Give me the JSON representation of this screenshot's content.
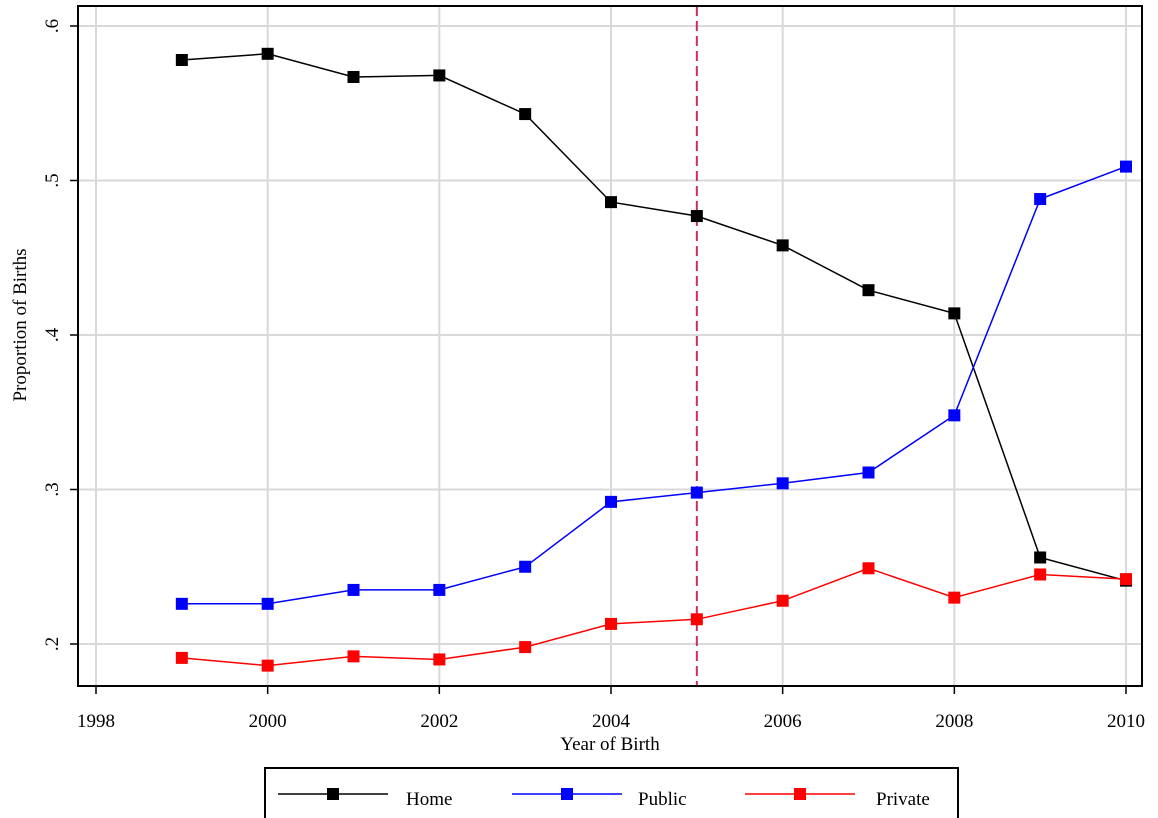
{
  "chart_data": {
    "type": "line",
    "title": "",
    "xlabel": "Year of Birth",
    "ylabel": "Proportion of Births",
    "xlim": [
      1998,
      2010
    ],
    "ylim": [
      0.2,
      0.6
    ],
    "x_ticks": [
      1998,
      2000,
      2002,
      2004,
      2006,
      2008,
      2010
    ],
    "x_tick_labels": [
      "1998",
      "2000",
      "2002",
      "2004",
      "2006",
      "2008",
      "2010"
    ],
    "y_ticks": [
      0.2,
      0.3,
      0.4,
      0.5,
      0.6
    ],
    "y_tick_labels": [
      ".2",
      ".3",
      ".4",
      ".5",
      ".6"
    ],
    "grid": true,
    "legend_position": "bottom",
    "reference_line": {
      "x": 2005,
      "color": "#c8325a",
      "style": "dashed"
    },
    "x": [
      1999,
      2000,
      2001,
      2002,
      2003,
      2004,
      2005,
      2006,
      2007,
      2008,
      2009,
      2010
    ],
    "series": [
      {
        "name": "Home",
        "color": "#000000",
        "values": [
          0.578,
          0.582,
          0.567,
          0.568,
          0.543,
          0.486,
          0.477,
          0.458,
          0.429,
          0.414,
          0.256,
          0.241
        ]
      },
      {
        "name": "Public",
        "color": "#0000ff",
        "values": [
          0.226,
          0.226,
          0.235,
          0.235,
          0.25,
          0.292,
          0.298,
          0.304,
          0.311,
          0.348,
          0.488,
          0.509
        ]
      },
      {
        "name": "Private",
        "color": "#ff0000",
        "values": [
          0.191,
          0.186,
          0.192,
          0.19,
          0.198,
          0.213,
          0.216,
          0.228,
          0.249,
          0.23,
          0.245,
          0.242
        ]
      }
    ]
  }
}
